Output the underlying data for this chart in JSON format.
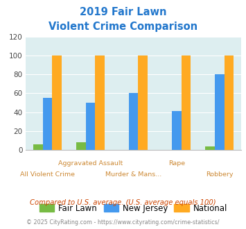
{
  "title_line1": "2019 Fair Lawn",
  "title_line2": "Violent Crime Comparison",
  "fair_lawn": [
    6,
    8,
    0,
    0,
    4
  ],
  "new_jersey": [
    55,
    50,
    60,
    41,
    80
  ],
  "national": [
    100,
    100,
    100,
    100,
    100
  ],
  "colors": {
    "fair_lawn": "#77bb44",
    "new_jersey": "#4499ee",
    "national": "#ffaa22"
  },
  "ylim": [
    0,
    120
  ],
  "yticks": [
    0,
    20,
    40,
    60,
    80,
    100,
    120
  ],
  "bg_color": "#ddeef0",
  "title_color": "#2277cc",
  "top_xlabel_color": "#cc8833",
  "bottom_xlabel_color": "#cc8833",
  "note_text": "Compared to U.S. average. (U.S. average equals 100)",
  "note_color": "#cc4400",
  "footer_text": "© 2025 CityRating.com - https://www.cityrating.com/crime-statistics/",
  "footer_color": "#888888",
  "legend_labels": [
    "Fair Lawn",
    "New Jersey",
    "National"
  ],
  "bar_width": 0.22,
  "grid_color": "#ffffff",
  "top_labels": {
    "1": "Aggravated Assault",
    "3": "Rape"
  },
  "bottom_labels": {
    "0": "All Violent Crime",
    "2": "Murder & Mans...",
    "4": "Robbery"
  }
}
